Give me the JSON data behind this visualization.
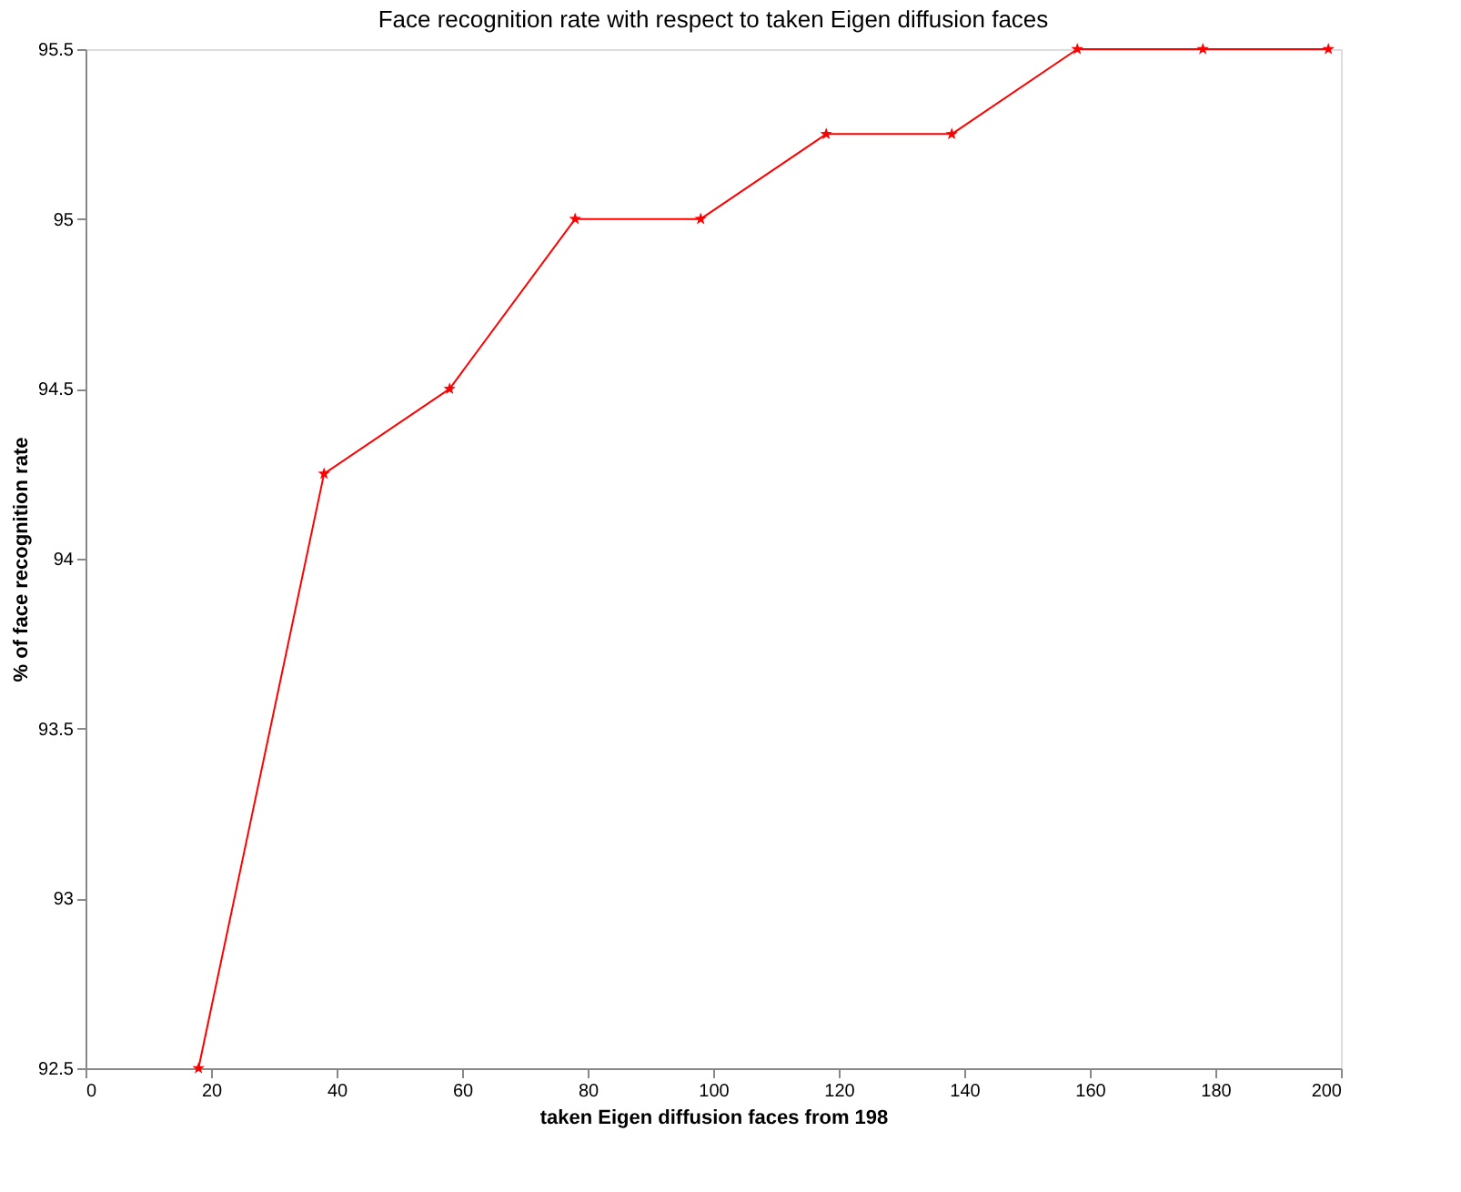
{
  "chart_data": {
    "type": "line",
    "title": "Face recognition rate with respect to taken Eigen diffusion faces",
    "xlabel": "taken Eigen diffusion faces from 198",
    "ylabel": "% of face recognition rate",
    "x": [
      18,
      38,
      58,
      78,
      98,
      118,
      138,
      158,
      178,
      198
    ],
    "series": [
      {
        "color": "#ff0000",
        "values": [
          92.5,
          94.25,
          94.5,
          95,
          95,
          95.25,
          95.25,
          95.5,
          95.5,
          95.5
        ]
      }
    ],
    "xlim": [
      0,
      200
    ],
    "xticks": [
      0,
      20,
      40,
      60,
      80,
      100,
      120,
      140,
      160,
      180,
      200
    ],
    "ylim": [
      92.5,
      95.5
    ],
    "yticks": [
      92.5,
      93,
      93.5,
      94,
      94.5,
      95,
      95.5
    ],
    "grid": false,
    "marker": "star",
    "line_style": "solid"
  }
}
